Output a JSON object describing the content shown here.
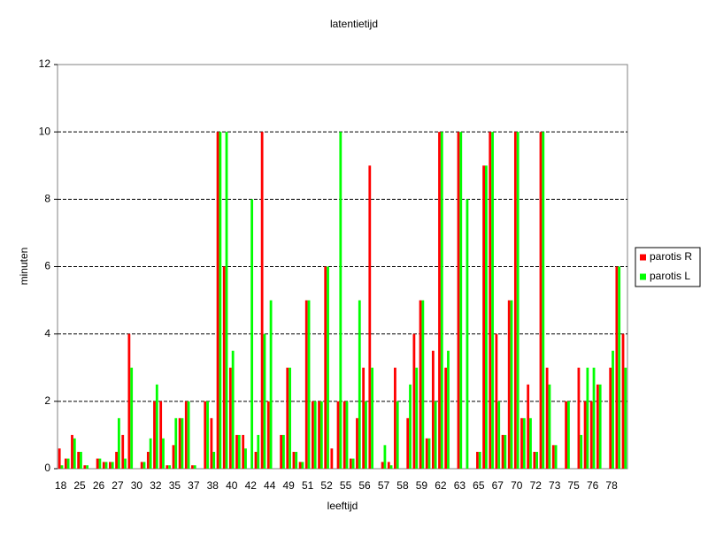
{
  "chart_data": {
    "type": "bar",
    "title": "latentietijd",
    "x_label": "leeftijd",
    "y_label": "minuten",
    "categories": [
      "18",
      null,
      null,
      "25",
      null,
      null,
      "26",
      null,
      null,
      "27",
      null,
      null,
      "30",
      null,
      null,
      "32",
      null,
      null,
      "35",
      null,
      null,
      "37",
      null,
      null,
      "38",
      null,
      null,
      "40",
      null,
      null,
      "42",
      null,
      null,
      "44",
      null,
      null,
      "49",
      null,
      null,
      "51",
      null,
      null,
      "52",
      null,
      null,
      "55",
      null,
      null,
      "56",
      null,
      null,
      "57",
      null,
      null,
      "58",
      null,
      null,
      "59",
      null,
      null,
      "62",
      null,
      null,
      "63",
      null,
      null,
      "65",
      null,
      null,
      "67",
      null,
      null,
      "70",
      null,
      null,
      "72",
      null,
      null,
      "73",
      null,
      null,
      "75",
      null,
      null,
      "76",
      null,
      null,
      "78",
      null,
      null
    ],
    "series": [
      {
        "name": "parotis R",
        "color": "#ff0000",
        "values": [
          0.6,
          0.3,
          1,
          0.5,
          0.1,
          0,
          0.3,
          0.2,
          0.2,
          0.5,
          1,
          4,
          0,
          0.2,
          0.5,
          2,
          2,
          0.1,
          0.7,
          1.5,
          2,
          0.1,
          0,
          2,
          1.5,
          10,
          6,
          3,
          1,
          1,
          0,
          0.5,
          10,
          2,
          0,
          1,
          3,
          0.5,
          0.2,
          5,
          2,
          2,
          6,
          0.6,
          2,
          2,
          0.3,
          1.5,
          3,
          9,
          0,
          0.2,
          0.2,
          3,
          0,
          1.5,
          4,
          5,
          0.9,
          3.5,
          10,
          3,
          0,
          10,
          0,
          0,
          0.5,
          9,
          10,
          4,
          1,
          5,
          10,
          1.5,
          2.5,
          0.5,
          10,
          3,
          0.7,
          0,
          2,
          0,
          3,
          2,
          2,
          2.5,
          0,
          3,
          6,
          4
        ]
      },
      {
        "name": "parotis L",
        "color": "#00ff00",
        "values": [
          0.1,
          0.3,
          0.9,
          0.5,
          0.1,
          0,
          0.3,
          0.2,
          0.2,
          1.5,
          0.3,
          3,
          0,
          0.2,
          0.9,
          2.5,
          0.9,
          0.1,
          1.5,
          1.5,
          2,
          0.1,
          0,
          2,
          0.5,
          10,
          10,
          3.5,
          1,
          0.6,
          8,
          1,
          4,
          5,
          0,
          1,
          3,
          0.5,
          0.2,
          5,
          2,
          2,
          6,
          0,
          10,
          2,
          0.3,
          5,
          2,
          3,
          0,
          0.7,
          0.1,
          2,
          0,
          2.5,
          3,
          5,
          0.9,
          2,
          10,
          3.5,
          0,
          10,
          8,
          0,
          0.5,
          9,
          10,
          2,
          1,
          5,
          10,
          1.5,
          1.5,
          0.5,
          10,
          2.5,
          0.7,
          0,
          2,
          0,
          1,
          3,
          3,
          2.5,
          0,
          3.5,
          6,
          3
        ]
      }
    ],
    "ylim": [
      0,
      12
    ],
    "yticks": [
      0,
      2,
      4,
      6,
      8,
      10,
      12
    ],
    "grid": true,
    "legend": "right"
  }
}
